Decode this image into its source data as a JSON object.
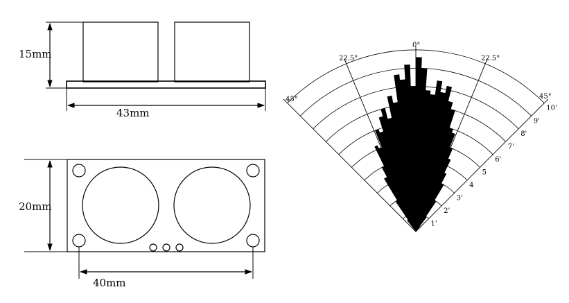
{
  "side_view": {
    "height_label": "15mm",
    "width_label": "43mm"
  },
  "front_view": {
    "height_label": "20mm",
    "spacing_label": "40mm"
  },
  "beam_chart": {
    "angle_labels": {
      "center": "0°",
      "left_mid": "22.5°",
      "right_mid": "22.5°",
      "left_edge": "45°",
      "right_edge": "45°"
    },
    "range_labels": [
      "1'",
      "2'",
      "3'",
      "4",
      "5",
      "6'",
      "7'",
      "8'",
      "9'",
      "10'"
    ],
    "range_ring_count": 10,
    "fill_color": "#000000",
    "line_color": "#000000"
  }
}
